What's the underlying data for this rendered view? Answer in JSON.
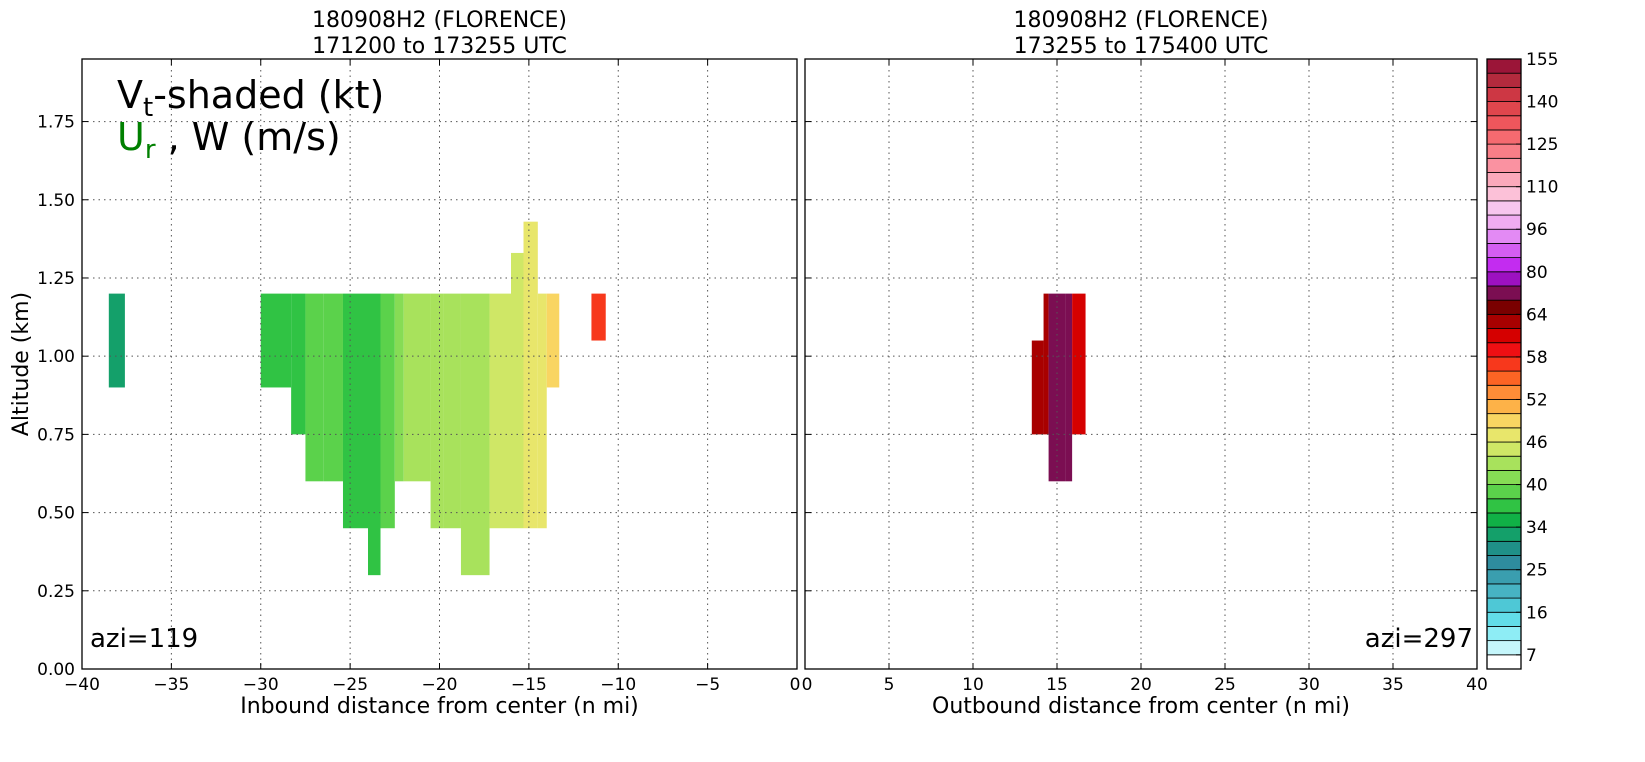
{
  "chart_data": [
    {
      "type": "heatmap",
      "title_line1": "180908H2 (FLORENCE)",
      "title_line2": "171200 to 173255 UTC",
      "xlabel": "Inbound distance from center (n mi)",
      "ylabel": "Altitude (km)",
      "xlim": [
        -40,
        0
      ],
      "ylim": [
        0,
        1.95
      ],
      "x_ticks": [
        "−40",
        "−35",
        "−30",
        "−25",
        "−20",
        "−15",
        "−10",
        "−5",
        "0"
      ],
      "x_tick_values": [
        -40,
        -35,
        -30,
        -25,
        -20,
        -15,
        -10,
        -5,
        0
      ],
      "y_ticks": [
        "0.00",
        "0.25",
        "0.50",
        "0.75",
        "1.00",
        "1.25",
        "1.50",
        "1.75"
      ],
      "y_tick_values": [
        0,
        0.25,
        0.5,
        0.75,
        1.0,
        1.25,
        1.5,
        1.75
      ],
      "grid": true,
      "legend_line1_main": "V",
      "legend_line1_sub": "t",
      "legend_line1_rest": "-shaded (kt)",
      "legend_line2_main": "U",
      "legend_line2_sub": "r",
      "legend_line2_rest": " , W (m/s)",
      "legend_line2_color": "#008000",
      "azimuth_label": "azi=119",
      "cells": [
        {
          "x0": -38.5,
          "x1": -37.6,
          "y0": 0.9,
          "y1": 1.2,
          "vt": 32
        },
        {
          "x0": -30.0,
          "x1": -28.3,
          "y0": 0.9,
          "y1": 1.2,
          "vt": 37
        },
        {
          "x0": -28.3,
          "x1": -27.5,
          "y0": 0.75,
          "y1": 1.2,
          "vt": 37
        },
        {
          "x0": -27.5,
          "x1": -26.5,
          "y0": 0.6,
          "y1": 1.2,
          "vt": 38
        },
        {
          "x0": -26.5,
          "x1": -25.4,
          "y0": 0.6,
          "y1": 1.2,
          "vt": 39
        },
        {
          "x0": -25.4,
          "x1": -24.0,
          "y0": 0.45,
          "y1": 1.2,
          "vt": 37
        },
        {
          "x0": -24.0,
          "x1": -23.3,
          "y0": 0.3,
          "y1": 1.2,
          "vt": 36
        },
        {
          "x0": -23.3,
          "x1": -22.5,
          "y0": 0.45,
          "y1": 1.2,
          "vt": 38
        },
        {
          "x0": -22.5,
          "x1": -22.0,
          "y0": 0.6,
          "y1": 1.2,
          "vt": 40
        },
        {
          "x0": -22.0,
          "x1": -20.5,
          "y0": 0.6,
          "y1": 1.2,
          "vt": 42
        },
        {
          "x0": -20.5,
          "x1": -19.8,
          "y0": 0.45,
          "y1": 1.2,
          "vt": 43
        },
        {
          "x0": -19.8,
          "x1": -18.8,
          "y0": 0.45,
          "y1": 1.2,
          "vt": 42
        },
        {
          "x0": -18.8,
          "x1": -17.2,
          "y0": 0.3,
          "y1": 1.2,
          "vt": 42
        },
        {
          "x0": -17.2,
          "x1": -16.0,
          "y0": 0.45,
          "y1": 1.2,
          "vt": 44
        },
        {
          "x0": -16.0,
          "x1": -15.3,
          "y0": 0.45,
          "y1": 1.33,
          "vt": 45
        },
        {
          "x0": -15.3,
          "x1": -14.5,
          "y0": 0.45,
          "y1": 1.43,
          "vt": 46
        },
        {
          "x0": -14.5,
          "x1": -14.0,
          "y0": 0.45,
          "y1": 1.2,
          "vt": 47
        },
        {
          "x0": -14.0,
          "x1": -13.3,
          "y0": 0.9,
          "y1": 1.2,
          "vt": 48
        },
        {
          "x0": -11.5,
          "x1": -10.7,
          "y0": 1.05,
          "y1": 1.2,
          "vt": 56
        }
      ]
    },
    {
      "type": "heatmap",
      "title_line1": "180908H2 (FLORENCE)",
      "title_line2": "173255 to 175400 UTC",
      "xlabel": "Outbound distance from center (n mi)",
      "xlim": [
        0,
        40
      ],
      "ylim": [
        0,
        1.95
      ],
      "x_ticks": [
        "0",
        "5",
        "10",
        "15",
        "20",
        "25",
        "30",
        "35",
        "40"
      ],
      "x_tick_values": [
        0,
        5,
        10,
        15,
        20,
        25,
        30,
        35,
        40
      ],
      "grid": true,
      "azimuth_label": "azi=297",
      "cells": [
        {
          "x0": 13.5,
          "x1": 14.2,
          "y0": 0.75,
          "y1": 1.05,
          "vt": 62
        },
        {
          "x0": 14.2,
          "x1": 14.5,
          "y0": 0.75,
          "y1": 1.2,
          "vt": 63
        },
        {
          "x0": 14.5,
          "x1": 15.5,
          "y0": 0.6,
          "y1": 1.2,
          "vt": 70
        },
        {
          "x0": 15.5,
          "x1": 15.9,
          "y0": 0.6,
          "y1": 1.2,
          "vt": 74
        },
        {
          "x0": 15.9,
          "x1": 16.7,
          "y0": 0.75,
          "y1": 1.2,
          "vt": 60
        }
      ]
    }
  ],
  "colorbar": {
    "tick_labels": [
      "7",
      "16",
      "25",
      "34",
      "40",
      "46",
      "52",
      "58",
      "64",
      "80",
      "96",
      "110",
      "125",
      "140",
      "155"
    ],
    "tick_values": [
      7,
      16,
      25,
      34,
      40,
      46,
      52,
      58,
      64,
      80,
      96,
      110,
      125,
      140,
      155
    ],
    "colors": [
      "#ffffff",
      "#c5f6fb",
      "#8eedf5",
      "#62dde8",
      "#4ec8d6",
      "#47b3c3",
      "#3a9eaf",
      "#2e8c9e",
      "#1f9088",
      "#14a06a",
      "#10b146",
      "#30c344",
      "#5bd24b",
      "#86dc55",
      "#a8e25c",
      "#cfe766",
      "#e8e66b",
      "#f9d562",
      "#fdb248",
      "#fe8d37",
      "#fc6424",
      "#f7381c",
      "#ef0f13",
      "#d50000",
      "#a80000",
      "#7a0000",
      "#7b0e52",
      "#9d11c1",
      "#c32cf0",
      "#d45ef2",
      "#e38af4",
      "#f0acf1",
      "#f7c6ee",
      "#fcc1d8",
      "#fba9bb",
      "#fa92a1",
      "#f97e87",
      "#f56a70",
      "#ef565c",
      "#e0464d",
      "#cd3744",
      "#b32a3d",
      "#9b1538"
    ]
  }
}
